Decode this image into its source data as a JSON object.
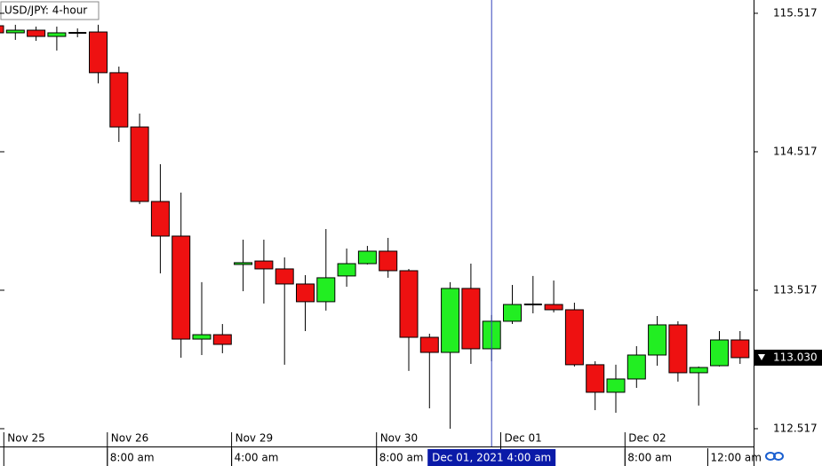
{
  "chart_data": {
    "type": "candlestick",
    "title": "USD/JPY: 4-hour",
    "open": [
      115.427,
      115.376,
      115.395,
      115.35,
      115.376,
      115.382,
      115.088,
      114.696,
      114.158,
      113.908,
      113.164,
      113.196,
      113.703,
      113.728,
      113.671,
      113.562,
      113.434,
      113.62,
      113.709,
      113.799,
      113.658,
      113.177,
      113.068,
      113.53,
      113.094,
      113.293,
      113.414,
      113.414,
      113.376,
      112.979,
      112.78,
      112.876,
      113.049,
      113.267,
      112.921,
      112.972,
      113.158
    ],
    "high": [
      115.44,
      115.434,
      115.421,
      115.421,
      115.408,
      115.434,
      115.132,
      114.793,
      114.427,
      114.222,
      113.575,
      113.273,
      113.882,
      113.882,
      113.754,
      113.626,
      113.959,
      113.818,
      113.837,
      113.895,
      113.671,
      113.203,
      113.575,
      113.709,
      113.338,
      113.555,
      113.62,
      113.587,
      113.427,
      113.004,
      112.979,
      113.113,
      113.331,
      113.293,
      112.966,
      113.222,
      113.222
    ],
    "low": [
      115.37,
      115.325,
      115.318,
      115.248,
      115.344,
      115.011,
      114.588,
      114.139,
      113.639,
      113.03,
      113.049,
      113.062,
      113.51,
      113.421,
      112.979,
      113.222,
      113.37,
      113.542,
      113.703,
      113.607,
      112.934,
      112.664,
      112.517,
      112.985,
      113.004,
      113.273,
      113.35,
      113.357,
      112.966,
      112.651,
      112.632,
      112.812,
      112.972,
      112.857,
      112.684,
      112.966,
      112.985
    ],
    "close": [
      115.376,
      115.395,
      115.35,
      115.376,
      115.376,
      115.088,
      114.696,
      114.158,
      113.908,
      113.164,
      113.196,
      113.126,
      113.716,
      113.671,
      113.562,
      113.434,
      113.607,
      113.709,
      113.799,
      113.658,
      113.177,
      113.068,
      113.53,
      113.094,
      113.293,
      113.414,
      113.414,
      113.376,
      112.979,
      112.78,
      112.876,
      113.049,
      113.267,
      112.921,
      112.959,
      113.158,
      113.03
    ],
    "date_labels": [
      null,
      "Nov 25",
      null,
      null,
      null,
      null,
      "Nov 26",
      null,
      null,
      null,
      null,
      null,
      "Nov 29",
      null,
      null,
      null,
      null,
      null,
      null,
      "Nov 30",
      null,
      null,
      null,
      null,
      null,
      "Dec 01",
      null,
      null,
      null,
      null,
      null,
      "Dec 02",
      null,
      null,
      null,
      null,
      null
    ],
    "time_labels": [
      null,
      null,
      null,
      null,
      null,
      null,
      "8:00 am",
      null,
      null,
      null,
      null,
      null,
      "4:00 am",
      null,
      null,
      null,
      null,
      null,
      null,
      "8:00 am",
      null,
      null,
      null,
      null,
      null,
      null,
      null,
      null,
      null,
      null,
      null,
      "8:00 am",
      null,
      null,
      null,
      "12:00 am",
      null
    ],
    "crosshair_x": 24,
    "crosshair_label": "Dec 01, 2021 4:00 am",
    "last_price": {
      "value": 113.03,
      "label": "113.030"
    },
    "up_color": "#22ee22",
    "down_color": "#ee1111",
    "crosshair_color": "#3344bb",
    "ylim": [
      112.504,
      115.613
    ],
    "yticks": [
      112.517,
      113.517,
      114.517,
      115.517
    ]
  }
}
